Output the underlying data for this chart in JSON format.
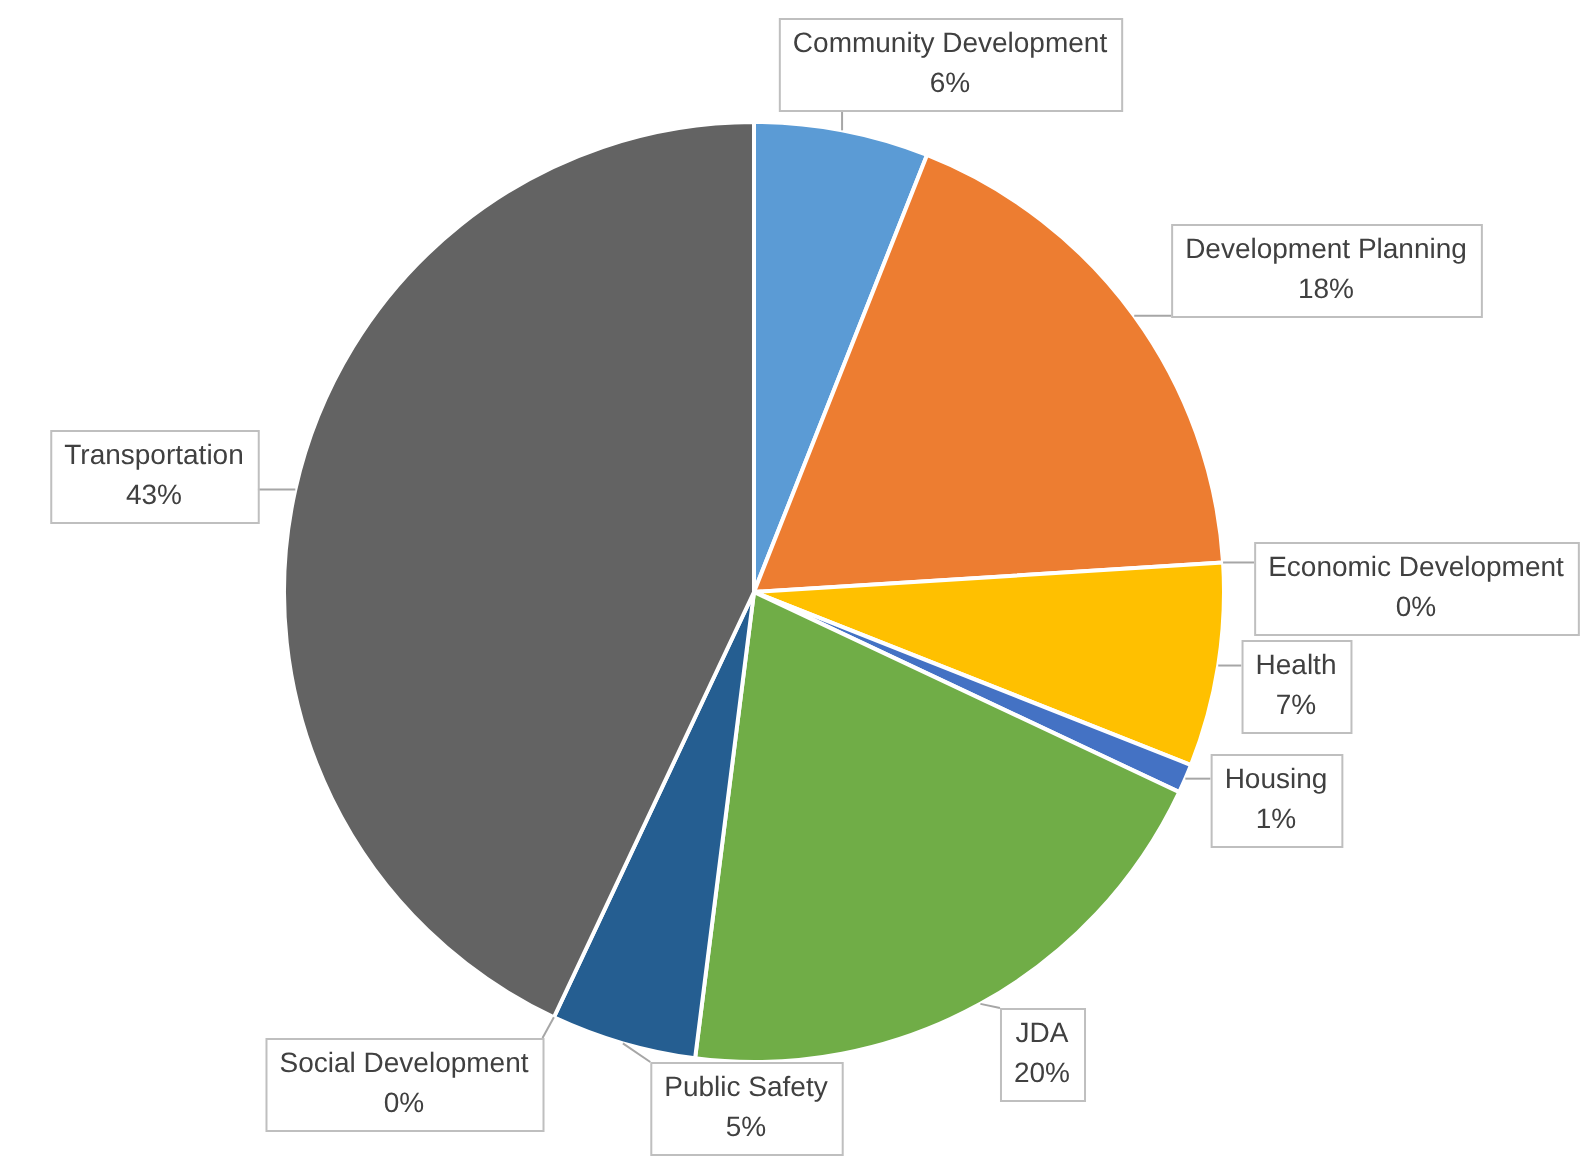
{
  "chart_data": {
    "type": "pie",
    "categories": [
      "Community Development",
      "Development Planning",
      "Economic Development",
      "Health",
      "Housing",
      "JDA",
      "Public Safety",
      "Social Development",
      "Transportation"
    ],
    "values": [
      6,
      18,
      0,
      7,
      1,
      20,
      5,
      0,
      43
    ],
    "value_labels": [
      "6%",
      "18%",
      "0%",
      "7%",
      "1%",
      "20%",
      "5%",
      "0%",
      "43%"
    ],
    "colors": [
      "#5b9bd5",
      "#ed7d31",
      "#a5a5a5",
      "#ffc000",
      "#4472c4",
      "#70ad47",
      "#255e91",
      "#9e480e",
      "#636363"
    ]
  }
}
